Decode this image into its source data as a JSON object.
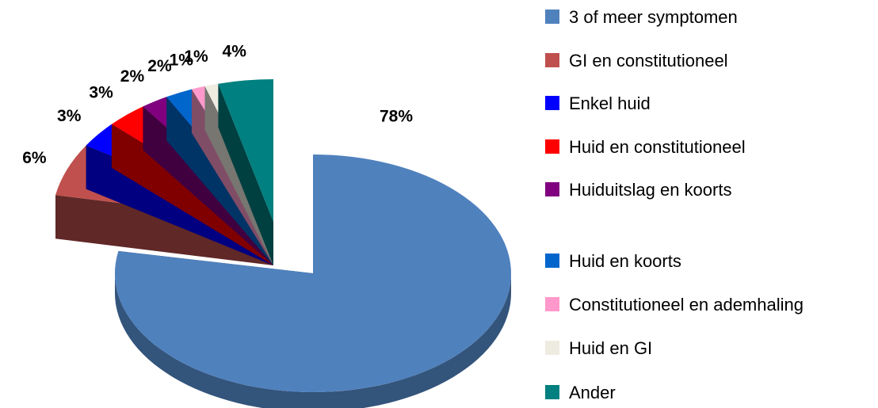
{
  "chart_data": {
    "type": "pie",
    "categories": [
      "3 of meer symptomen",
      "GI en constitutioneel",
      "Enkel huid",
      "Huid en constitutioneel",
      "Huiduitslag en koorts",
      "Huid en koorts",
      "Constitutioneel en ademhaling",
      "Huid en GI",
      "Ander"
    ],
    "values": [
      78,
      6,
      3,
      3,
      2,
      2,
      1,
      1,
      4
    ],
    "value_labels": [
      "78%",
      "6%",
      "3%",
      "3%",
      "2%",
      "2%",
      "1%",
      "1%",
      "4%"
    ],
    "colors": [
      "#4f81bd",
      "#c0504d",
      "#0000ff",
      "#ff0000",
      "#800080",
      "#0066cc",
      "#ff99cc",
      "#eeece1",
      "#008080"
    ],
    "legend": "right"
  }
}
